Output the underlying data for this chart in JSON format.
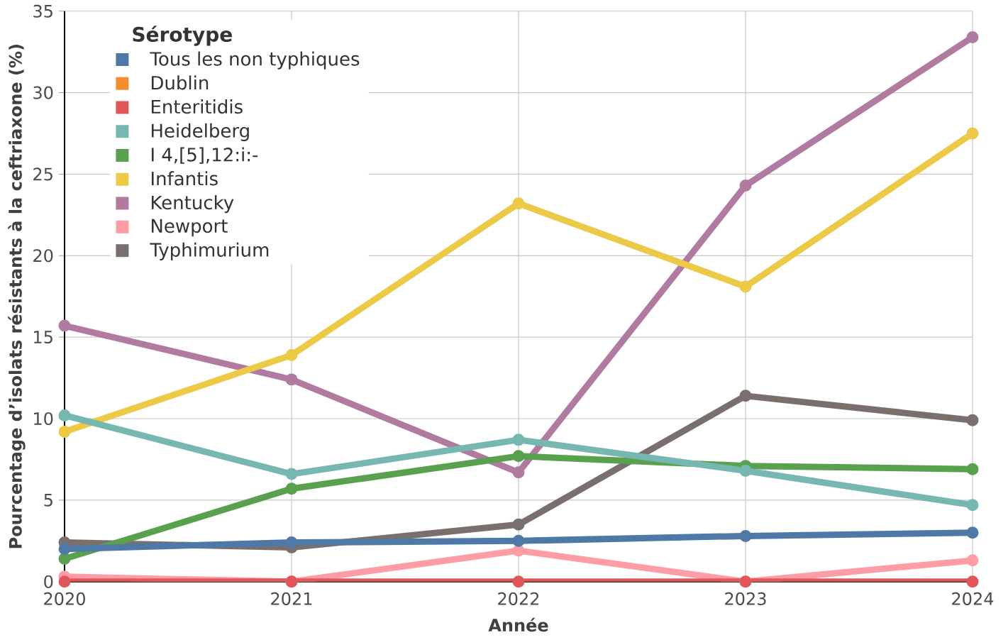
{
  "chart_data": {
    "type": "line",
    "xlabel": "Année",
    "ylabel": "Pourcentage d’isolats résistants à la ceftriaxone (%)",
    "legend_title": "Sérotype",
    "x": [
      2020,
      2021,
      2022,
      2023,
      2024
    ],
    "series": [
      {
        "name": "Tous les non typhiques",
        "color": "#4e79a7",
        "values": [
          2.0,
          2.4,
          2.5,
          2.8,
          3.0
        ]
      },
      {
        "name": "Dublin",
        "color": "#f28e2b",
        "values": [
          null,
          null,
          null,
          null,
          null
        ]
      },
      {
        "name": "Enteritidis",
        "color": "#e15759",
        "values": [
          0,
          0,
          0,
          0,
          0
        ]
      },
      {
        "name": "Heidelberg",
        "color": "#76b7b2",
        "values": [
          10.2,
          6.6,
          8.7,
          6.8,
          4.7
        ]
      },
      {
        "name": "I 4,[5],12:i:-",
        "color": "#59a14f",
        "values": [
          1.4,
          5.7,
          7.7,
          7.1,
          6.9
        ]
      },
      {
        "name": "Infantis",
        "color": "#edc948",
        "values": [
          9.2,
          13.9,
          23.2,
          18.1,
          27.5
        ]
      },
      {
        "name": "Kentucky",
        "color": "#b07aa1",
        "values": [
          15.7,
          12.4,
          6.7,
          24.3,
          33.4
        ]
      },
      {
        "name": "Newport",
        "color": "#ff9da7",
        "values": [
          0.3,
          0,
          1.9,
          0,
          1.3
        ]
      },
      {
        "name": "Typhimurium",
        "color": "#79706e",
        "values": [
          2.4,
          2.1,
          3.5,
          11.4,
          9.9
        ]
      }
    ],
    "xlim": [
      2020,
      2024
    ],
    "xticks": [
      2020,
      2021,
      2022,
      2023,
      2024
    ],
    "ylim": [
      0,
      35
    ],
    "yticks": [
      0,
      5,
      10,
      15,
      20,
      25,
      30,
      35
    ],
    "grid": true,
    "legend": "top left",
    "marker": "circle",
    "line_style": "solid"
  }
}
